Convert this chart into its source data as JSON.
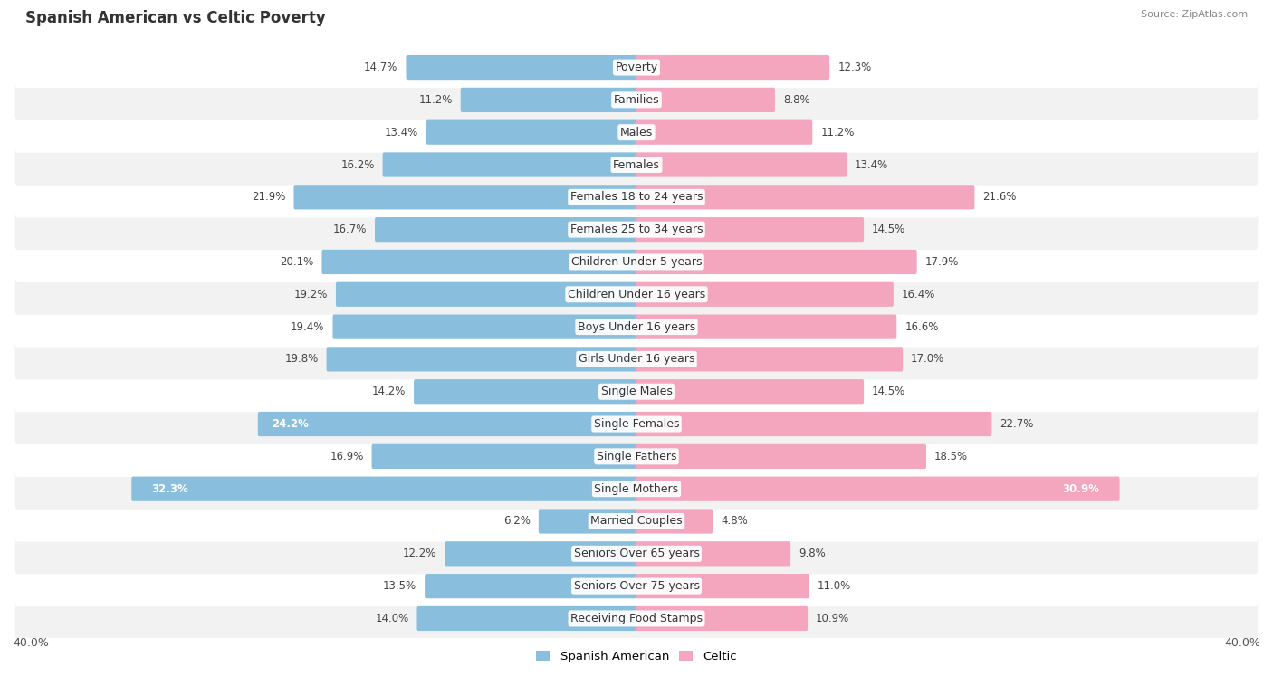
{
  "title": "Spanish American vs Celtic Poverty",
  "source": "Source: ZipAtlas.com",
  "categories": [
    "Poverty",
    "Families",
    "Males",
    "Females",
    "Females 18 to 24 years",
    "Females 25 to 34 years",
    "Children Under 5 years",
    "Children Under 16 years",
    "Boys Under 16 years",
    "Girls Under 16 years",
    "Single Males",
    "Single Females",
    "Single Fathers",
    "Single Mothers",
    "Married Couples",
    "Seniors Over 65 years",
    "Seniors Over 75 years",
    "Receiving Food Stamps"
  ],
  "spanish_american": [
    14.7,
    11.2,
    13.4,
    16.2,
    21.9,
    16.7,
    20.1,
    19.2,
    19.4,
    19.8,
    14.2,
    24.2,
    16.9,
    32.3,
    6.2,
    12.2,
    13.5,
    14.0
  ],
  "celtic": [
    12.3,
    8.8,
    11.2,
    13.4,
    21.6,
    14.5,
    17.9,
    16.4,
    16.6,
    17.0,
    14.5,
    22.7,
    18.5,
    30.9,
    4.8,
    9.8,
    11.0,
    10.9
  ],
  "blue_color": "#89bedd",
  "pink_color": "#f4a6be",
  "axis_limit": 40.0,
  "bar_height": 0.6,
  "row_bg_light": "#f2f2f2",
  "row_bg_white": "#ffffff",
  "label_fontsize": 9.0,
  "value_fontsize": 8.5,
  "title_fontsize": 12,
  "legend_labels": [
    "Spanish American",
    "Celtic"
  ]
}
